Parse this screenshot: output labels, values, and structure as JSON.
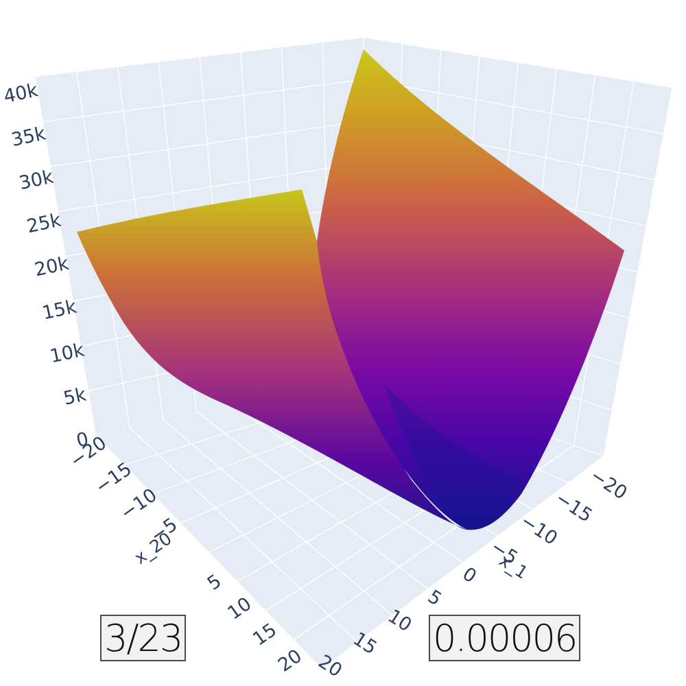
{
  "chart_data": {
    "type": "surface",
    "title": "",
    "colorscale": "plasma",
    "colors": {
      "pane": "#e5ecf6",
      "grid": "#ffffff",
      "tick_text": "#2a3f5f",
      "low": "#0d0887",
      "mid": "#9c179e",
      "high": "#f0f921"
    },
    "axes": {
      "x": {
        "title": "x_1",
        "range": [
          -20,
          20
        ],
        "ticks": [
          "−20",
          "−15",
          "−10",
          "−5",
          "0",
          "5",
          "10",
          "15",
          "20"
        ]
      },
      "y": {
        "title": "x_20",
        "range": [
          -20,
          20
        ],
        "ticks": [
          "−20",
          "−15",
          "−10",
          "−5",
          "0",
          "5",
          "10",
          "15",
          "20"
        ]
      },
      "z": {
        "title": "",
        "range": [
          0,
          40000
        ],
        "ticks": [
          "0",
          "5k",
          "10k",
          "15k",
          "20k",
          "25k",
          "30k",
          "35k",
          "40k"
        ]
      }
    },
    "surface_samples": [
      {
        "x": 20,
        "y": -20,
        "z": 24800
      },
      {
        "x": -20,
        "y": -20,
        "z": 40000
      },
      {
        "x": 20,
        "y": 20,
        "z": 27000
      },
      {
        "x": -20,
        "y": 20,
        "z": 22000
      },
      {
        "x": 0,
        "y": 0,
        "z": 0
      }
    ]
  },
  "badges": {
    "left": "3/23",
    "right": "0.00006"
  }
}
